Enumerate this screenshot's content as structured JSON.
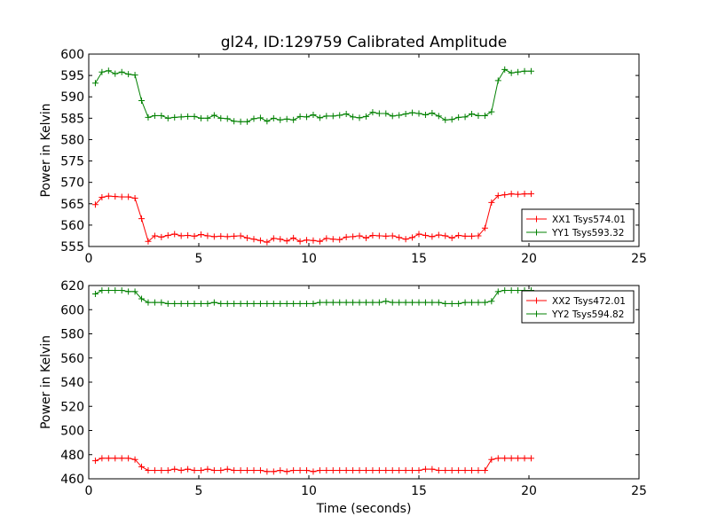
{
  "figure_title": "gl24, ID:129759 Calibrated Amplitude",
  "colors": {
    "red": "#ff0000",
    "green": "#008000"
  },
  "chart_data": [
    {
      "type": "line",
      "title": "gl24, ID:129759 Calibrated Amplitude",
      "xlabel": "",
      "ylabel": "Power in Kelvin",
      "xlim": [
        0,
        25
      ],
      "ylim": [
        555,
        600
      ],
      "xticks": [
        "0",
        "5",
        "10",
        "15",
        "20",
        "25"
      ],
      "yticks": [
        "555",
        "560",
        "565",
        "570",
        "575",
        "580",
        "585",
        "590",
        "595",
        "600"
      ],
      "legend_position": "lower-right",
      "grid": false,
      "marker": "+",
      "series": [
        {
          "name": "XX1 Tsys574.01",
          "color": "#ff0000",
          "x": [
            0.3,
            0.6,
            0.9,
            1.2,
            1.5,
            1.8,
            2.1,
            2.4,
            2.7,
            3.0,
            3.3,
            3.6,
            3.9,
            4.2,
            4.5,
            4.8,
            5.1,
            5.4,
            5.7,
            6.0,
            6.3,
            6.6,
            6.9,
            7.2,
            7.5,
            7.8,
            8.1,
            8.4,
            8.7,
            9.0,
            9.3,
            9.6,
            9.9,
            10.2,
            10.5,
            10.8,
            11.1,
            11.4,
            11.7,
            12.0,
            12.3,
            12.6,
            12.9,
            13.2,
            13.5,
            13.8,
            14.1,
            14.4,
            14.7,
            15.0,
            15.3,
            15.6,
            15.9,
            16.2,
            16.5,
            16.8,
            17.1,
            17.4,
            17.7,
            18.0,
            18.3,
            18.6,
            18.9,
            19.2,
            19.5,
            19.8,
            20.1
          ],
          "y": [
            564.8,
            566.5,
            566.8,
            566.7,
            566.6,
            566.6,
            566.3,
            561.5,
            556.2,
            557.5,
            557.2,
            557.6,
            557.9,
            557.5,
            557.6,
            557.4,
            557.8,
            557.5,
            557.3,
            557.4,
            557.3,
            557.4,
            557.5,
            557.0,
            556.7,
            556.4,
            556.0,
            556.9,
            556.7,
            556.3,
            557.0,
            556.2,
            556.5,
            556.4,
            556.2,
            556.9,
            556.7,
            556.6,
            557.2,
            557.3,
            557.5,
            557.0,
            557.6,
            557.5,
            557.4,
            557.5,
            557.1,
            556.7,
            557.1,
            557.9,
            557.6,
            557.3,
            557.7,
            557.5,
            557.0,
            557.6,
            557.4,
            557.4,
            557.5,
            559.3,
            565.3,
            566.9,
            567.1,
            567.3,
            567.2,
            567.3,
            567.3
          ]
        },
        {
          "name": "YY1 Tsys593.32",
          "color": "#008000",
          "x": [
            0.3,
            0.6,
            0.9,
            1.2,
            1.5,
            1.8,
            2.1,
            2.4,
            2.7,
            3.0,
            3.3,
            3.6,
            3.9,
            4.2,
            4.5,
            4.8,
            5.1,
            5.4,
            5.7,
            6.0,
            6.3,
            6.6,
            6.9,
            7.2,
            7.5,
            7.8,
            8.1,
            8.4,
            8.7,
            9.0,
            9.3,
            9.6,
            9.9,
            10.2,
            10.5,
            10.8,
            11.1,
            11.4,
            11.7,
            12.0,
            12.3,
            12.6,
            12.9,
            13.2,
            13.5,
            13.8,
            14.1,
            14.4,
            14.7,
            15.0,
            15.3,
            15.6,
            15.9,
            16.2,
            16.5,
            16.8,
            17.1,
            17.4,
            17.7,
            18.0,
            18.3,
            18.6,
            18.9,
            19.2,
            19.5,
            19.8,
            20.1
          ],
          "y": [
            593.2,
            595.8,
            596.1,
            595.4,
            595.8,
            595.3,
            595.1,
            589.1,
            585.2,
            585.6,
            585.6,
            585.0,
            585.2,
            585.3,
            585.4,
            585.4,
            585.0,
            585.0,
            585.7,
            585.0,
            584.9,
            584.3,
            584.2,
            584.2,
            584.9,
            585.1,
            584.3,
            585.0,
            584.6,
            584.8,
            584.6,
            585.4,
            585.3,
            585.8,
            585.1,
            585.5,
            585.5,
            585.7,
            586.0,
            585.3,
            585.1,
            585.4,
            586.4,
            586.1,
            586.1,
            585.5,
            585.7,
            586.0,
            586.3,
            586.1,
            585.8,
            586.2,
            585.5,
            584.6,
            584.7,
            585.2,
            585.3,
            586.0,
            585.6,
            585.6,
            586.5,
            593.8,
            596.4,
            595.6,
            595.8,
            596.0,
            596.0
          ]
        }
      ]
    },
    {
      "type": "line",
      "title": "",
      "xlabel": "Time (seconds)",
      "ylabel": "Power in Kelvin",
      "xlim": [
        0,
        25
      ],
      "ylim": [
        460,
        620
      ],
      "xticks": [
        "0",
        "5",
        "10",
        "15",
        "20",
        "25"
      ],
      "yticks": [
        "460",
        "480",
        "500",
        "520",
        "540",
        "560",
        "580",
        "600",
        "620"
      ],
      "legend_position": "upper-right",
      "grid": false,
      "marker": "+",
      "series": [
        {
          "name": "XX2 Tsys472.01",
          "color": "#ff0000",
          "x": [
            0.3,
            0.6,
            0.9,
            1.2,
            1.5,
            1.8,
            2.1,
            2.4,
            2.7,
            3.0,
            3.3,
            3.6,
            3.9,
            4.2,
            4.5,
            4.8,
            5.1,
            5.4,
            5.7,
            6.0,
            6.3,
            6.6,
            6.9,
            7.2,
            7.5,
            7.8,
            8.1,
            8.4,
            8.7,
            9.0,
            9.3,
            9.6,
            9.9,
            10.2,
            10.5,
            10.8,
            11.1,
            11.4,
            11.7,
            12.0,
            12.3,
            12.6,
            12.9,
            13.2,
            13.5,
            13.8,
            14.1,
            14.4,
            14.7,
            15.0,
            15.3,
            15.6,
            15.9,
            16.2,
            16.5,
            16.8,
            17.1,
            17.4,
            17.7,
            18.0,
            18.3,
            18.6,
            18.9,
            19.2,
            19.5,
            19.8,
            20.1
          ],
          "y": [
            475,
            477,
            477,
            477,
            477,
            477,
            476,
            470,
            467,
            467,
            467,
            467,
            468,
            467,
            468,
            467,
            467,
            468,
            467,
            467,
            468,
            467,
            467,
            467,
            467,
            467,
            466,
            466,
            467,
            466,
            467,
            467,
            467,
            466,
            467,
            467,
            467,
            467,
            467,
            467,
            467,
            467,
            467,
            467,
            467,
            467,
            467,
            467,
            467,
            467,
            468,
            468,
            467,
            467,
            467,
            467,
            467,
            467,
            467,
            467,
            476,
            477,
            477,
            477,
            477,
            477,
            477
          ]
        },
        {
          "name": "YY2 Tsys594.82",
          "color": "#008000",
          "x": [
            0.3,
            0.6,
            0.9,
            1.2,
            1.5,
            1.8,
            2.1,
            2.4,
            2.7,
            3.0,
            3.3,
            3.6,
            3.9,
            4.2,
            4.5,
            4.8,
            5.1,
            5.4,
            5.7,
            6.0,
            6.3,
            6.6,
            6.9,
            7.2,
            7.5,
            7.8,
            8.1,
            8.4,
            8.7,
            9.0,
            9.3,
            9.6,
            9.9,
            10.2,
            10.5,
            10.8,
            11.1,
            11.4,
            11.7,
            12.0,
            12.3,
            12.6,
            12.9,
            13.2,
            13.5,
            13.8,
            14.1,
            14.4,
            14.7,
            15.0,
            15.3,
            15.6,
            15.9,
            16.2,
            16.5,
            16.8,
            17.1,
            17.4,
            17.7,
            18.0,
            18.3,
            18.6,
            18.9,
            19.2,
            19.5,
            19.8,
            20.1
          ],
          "y": [
            613,
            616,
            616,
            616,
            616,
            615,
            615,
            609,
            606,
            606,
            606,
            605,
            605,
            605,
            605,
            605,
            605,
            605,
            606,
            605,
            605,
            605,
            605,
            605,
            605,
            605,
            605,
            605,
            605,
            605,
            605,
            605,
            605,
            605,
            606,
            606,
            606,
            606,
            606,
            606,
            606,
            606,
            606,
            606,
            607,
            606,
            606,
            606,
            606,
            606,
            606,
            606,
            606,
            605,
            605,
            605,
            606,
            606,
            606,
            606,
            607,
            615,
            616,
            616,
            616,
            616,
            616
          ]
        }
      ]
    }
  ]
}
